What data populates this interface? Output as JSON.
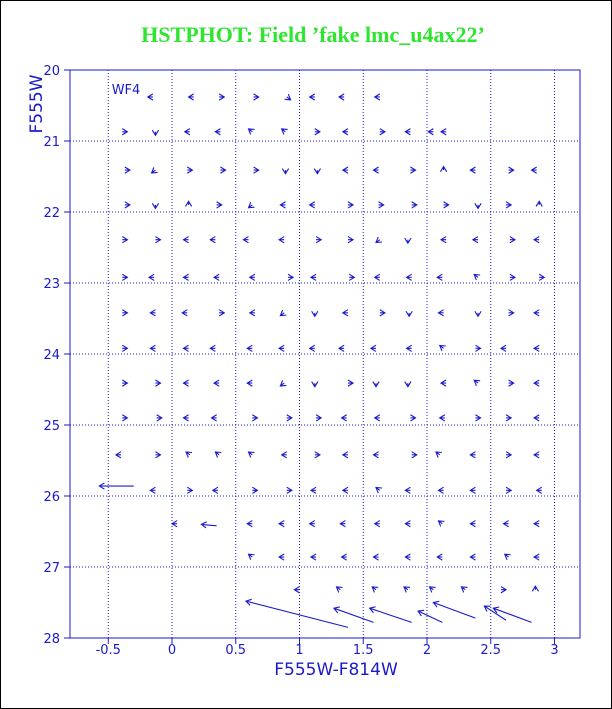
{
  "chart_data": {
    "type": "quiver",
    "title": "HSTPHOT: Field ’fake lmc_u4ax22’",
    "x_label": "F555W-F814W",
    "y_label": "F555W",
    "annotation": "WF4",
    "xlim": [
      -0.8,
      3.2
    ],
    "ylim": [
      28,
      20
    ],
    "xticks": [
      -0.5,
      0,
      0.5,
      1,
      1.5,
      2,
      2.5,
      3
    ],
    "yticks": [
      20,
      21,
      22,
      23,
      24,
      25,
      26,
      27,
      28
    ],
    "grid": true,
    "color": "#1a1acc",
    "arrows": [
      [
        -0.15,
        20.38,
        -0.04,
        0
      ],
      [
        0.17,
        20.38,
        -0.04,
        0
      ],
      [
        0.37,
        20.38,
        0.04,
        0
      ],
      [
        0.64,
        20.38,
        0.04,
        0
      ],
      [
        0.9,
        20.38,
        0.03,
        0.04
      ],
      [
        1.12,
        20.38,
        -0.04,
        0
      ],
      [
        1.35,
        20.38,
        -0.04,
        0
      ],
      [
        1.63,
        20.38,
        -0.04,
        0
      ],
      [
        -0.39,
        20.87,
        0.04,
        0
      ],
      [
        -0.13,
        20.87,
        0,
        0.05
      ],
      [
        0.14,
        20.87,
        -0.04,
        0
      ],
      [
        0.38,
        20.87,
        -0.04,
        0
      ],
      [
        0.63,
        20.87,
        -0.03,
        -0.04
      ],
      [
        0.89,
        20.87,
        -0.03,
        -0.04
      ],
      [
        1.12,
        20.87,
        0.04,
        0
      ],
      [
        1.38,
        20.87,
        -0.04,
        0
      ],
      [
        1.63,
        20.87,
        0.04,
        0
      ],
      [
        1.87,
        20.87,
        -0.04,
        0
      ],
      [
        2.05,
        20.87,
        -0.04,
        0
      ],
      [
        2.15,
        20.87,
        -0.04,
        0
      ],
      [
        -0.37,
        21.41,
        0.04,
        0
      ],
      [
        -0.13,
        21.41,
        -0.03,
        0.04
      ],
      [
        0.12,
        21.41,
        0.04,
        0
      ],
      [
        0.38,
        21.41,
        0.04,
        0
      ],
      [
        0.64,
        21.41,
        0.04,
        0
      ],
      [
        0.89,
        21.41,
        0,
        0.05
      ],
      [
        1.14,
        21.41,
        0,
        0.05
      ],
      [
        1.38,
        21.41,
        -0.04,
        0
      ],
      [
        1.62,
        21.41,
        -0.04,
        0
      ],
      [
        1.87,
        21.41,
        0.04,
        0
      ],
      [
        2.13,
        21.41,
        0,
        -0.05
      ],
      [
        2.38,
        21.41,
        -0.04,
        0
      ],
      [
        2.64,
        21.41,
        0.04,
        0
      ],
      [
        2.86,
        21.41,
        -0.04,
        0
      ],
      [
        -0.37,
        21.9,
        0.04,
        0
      ],
      [
        -0.13,
        21.9,
        0,
        0.05
      ],
      [
        0.13,
        21.9,
        0,
        -0.05
      ],
      [
        0.35,
        21.9,
        0.04,
        0
      ],
      [
        0.63,
        21.9,
        -0.03,
        0.04
      ],
      [
        0.89,
        21.9,
        -0.04,
        0
      ],
      [
        1.12,
        21.9,
        -0.04,
        0
      ],
      [
        1.38,
        21.9,
        0.04,
        0
      ],
      [
        1.62,
        21.9,
        0.04,
        0
      ],
      [
        1.88,
        21.9,
        0.04,
        0
      ],
      [
        2.13,
        21.9,
        0.04,
        0
      ],
      [
        2.4,
        21.9,
        0,
        0.05
      ],
      [
        2.62,
        21.9,
        0.04,
        0
      ],
      [
        2.88,
        21.9,
        0,
        -0.05
      ],
      [
        -0.39,
        22.39,
        0.04,
        0
      ],
      [
        -0.13,
        22.39,
        0.04,
        0
      ],
      [
        0.13,
        22.39,
        -0.04,
        0
      ],
      [
        0.34,
        22.39,
        -0.04,
        0
      ],
      [
        0.6,
        22.39,
        -0.04,
        0
      ],
      [
        0.88,
        22.39,
        -0.04,
        0
      ],
      [
        1.13,
        22.39,
        0.04,
        0
      ],
      [
        1.38,
        22.39,
        0.04,
        0
      ],
      [
        1.63,
        22.39,
        -0.03,
        0.04
      ],
      [
        1.85,
        22.39,
        0,
        0.05
      ],
      [
        2.15,
        22.39,
        -0.04,
        0
      ],
      [
        2.4,
        22.39,
        -0.04,
        0
      ],
      [
        2.65,
        22.39,
        0.04,
        0
      ],
      [
        2.88,
        22.39,
        -0.04,
        0
      ],
      [
        -0.39,
        22.92,
        0.04,
        0
      ],
      [
        -0.14,
        22.92,
        -0.04,
        0
      ],
      [
        0.13,
        22.92,
        -0.04,
        0
      ],
      [
        0.37,
        22.92,
        -0.04,
        0
      ],
      [
        0.65,
        22.92,
        -0.04,
        0
      ],
      [
        0.91,
        22.92,
        0.04,
        0
      ],
      [
        1.13,
        22.92,
        -0.04,
        0
      ],
      [
        1.39,
        22.92,
        0.04,
        0
      ],
      [
        1.63,
        22.92,
        -0.04,
        0
      ],
      [
        1.88,
        22.92,
        -0.04,
        0
      ],
      [
        2.12,
        22.92,
        -0.04,
        0
      ],
      [
        2.4,
        22.92,
        -0.03,
        -0.04
      ],
      [
        2.65,
        22.92,
        0.04,
        0
      ],
      [
        2.88,
        22.92,
        0.04,
        0
      ],
      [
        -0.39,
        23.42,
        0.04,
        0
      ],
      [
        -0.13,
        23.42,
        -0.04,
        0
      ],
      [
        0.12,
        23.42,
        -0.04,
        0
      ],
      [
        0.37,
        23.42,
        0.04,
        0
      ],
      [
        0.65,
        23.42,
        -0.04,
        0
      ],
      [
        0.88,
        23.42,
        -0.03,
        0.04
      ],
      [
        1.12,
        23.42,
        0,
        0.05
      ],
      [
        1.38,
        23.42,
        -0.04,
        0
      ],
      [
        1.63,
        23.42,
        0.04,
        0
      ],
      [
        1.86,
        23.42,
        0,
        0.05
      ],
      [
        2.13,
        23.42,
        -0.04,
        0
      ],
      [
        2.4,
        23.42,
        0,
        0.05
      ],
      [
        2.64,
        23.42,
        0.04,
        0
      ],
      [
        2.88,
        23.42,
        -0.04,
        0
      ],
      [
        -0.39,
        23.92,
        0.04,
        0
      ],
      [
        -0.13,
        23.92,
        -0.04,
        0
      ],
      [
        0.13,
        23.92,
        -0.04,
        0
      ],
      [
        0.34,
        23.92,
        -0.04,
        0
      ],
      [
        0.63,
        23.92,
        -0.04,
        0
      ],
      [
        0.88,
        23.92,
        -0.04,
        0
      ],
      [
        1.12,
        23.92,
        -0.04,
        0
      ],
      [
        1.35,
        23.92,
        -0.04,
        0
      ],
      [
        1.6,
        23.92,
        -0.04,
        0
      ],
      [
        1.88,
        23.92,
        -0.04,
        0
      ],
      [
        2.13,
        23.92,
        -0.03,
        -0.04
      ],
      [
        2.38,
        23.92,
        0.04,
        0
      ],
      [
        2.62,
        23.92,
        -0.04,
        0
      ],
      [
        2.88,
        23.92,
        -0.04,
        0
      ],
      [
        -0.39,
        24.41,
        0.04,
        0
      ],
      [
        -0.13,
        24.41,
        0.04,
        0
      ],
      [
        0.13,
        24.41,
        -0.04,
        0
      ],
      [
        0.37,
        24.41,
        -0.04,
        0
      ],
      [
        0.63,
        24.41,
        -0.04,
        0
      ],
      [
        0.88,
        24.41,
        -0.03,
        0.04
      ],
      [
        1.12,
        24.41,
        0,
        0.05
      ],
      [
        1.38,
        24.41,
        0.04,
        0
      ],
      [
        1.6,
        24.41,
        0,
        0.05
      ],
      [
        1.85,
        24.41,
        0,
        0.05
      ],
      [
        2.15,
        24.41,
        -0.04,
        0
      ],
      [
        2.4,
        24.41,
        -0.03,
        -0.04
      ],
      [
        2.64,
        24.41,
        0.04,
        0
      ],
      [
        2.88,
        24.41,
        -0.04,
        0
      ],
      [
        -0.39,
        24.9,
        0.04,
        0
      ],
      [
        -0.12,
        24.9,
        0.04,
        0
      ],
      [
        0.13,
        24.9,
        -0.04,
        0
      ],
      [
        0.35,
        24.9,
        -0.04,
        0
      ],
      [
        0.63,
        24.9,
        0.04,
        0
      ],
      [
        0.9,
        24.9,
        0.04,
        0
      ],
      [
        1.13,
        24.9,
        0.04,
        0
      ],
      [
        1.37,
        24.9,
        -0.04,
        0
      ],
      [
        1.63,
        24.9,
        -0.04,
        0
      ],
      [
        1.87,
        24.9,
        0.04,
        0
      ],
      [
        2.14,
        24.9,
        -0.04,
        0
      ],
      [
        2.38,
        24.9,
        0.04,
        0
      ],
      [
        2.62,
        24.9,
        0.04,
        0
      ],
      [
        2.88,
        24.9,
        -0.04,
        0
      ],
      [
        -0.4,
        25.42,
        -0.04,
        0
      ],
      [
        -0.13,
        25.42,
        0.04,
        0
      ],
      [
        0.14,
        25.42,
        -0.03,
        -0.04
      ],
      [
        0.37,
        25.42,
        -0.03,
        -0.04
      ],
      [
        0.63,
        25.42,
        -0.03,
        -0.04
      ],
      [
        0.9,
        25.42,
        -0.04,
        0
      ],
      [
        1.12,
        25.42,
        0.04,
        0
      ],
      [
        1.38,
        25.42,
        -0.04,
        0
      ],
      [
        1.62,
        25.42,
        -0.04,
        0
      ],
      [
        1.88,
        25.42,
        0.04,
        0
      ],
      [
        2.1,
        25.42,
        -0.03,
        -0.04
      ],
      [
        2.38,
        25.42,
        -0.04,
        0
      ],
      [
        2.62,
        25.42,
        0.04,
        0
      ],
      [
        2.88,
        25.42,
        -0.04,
        0
      ],
      [
        -0.13,
        25.92,
        -0.04,
        0
      ],
      [
        0.12,
        25.92,
        0.04,
        0
      ],
      [
        0.36,
        25.92,
        -0.04,
        0
      ],
      [
        0.63,
        25.92,
        0.04,
        0
      ],
      [
        0.9,
        25.92,
        0.04,
        0
      ],
      [
        1.13,
        25.92,
        -0.04,
        0
      ],
      [
        1.38,
        25.92,
        -0.04,
        0
      ],
      [
        1.63,
        25.92,
        -0.03,
        -0.04
      ],
      [
        1.87,
        25.92,
        -0.04,
        0
      ],
      [
        2.13,
        25.92,
        -0.04,
        0
      ],
      [
        2.38,
        25.92,
        -0.04,
        0
      ],
      [
        2.62,
        25.92,
        0.04,
        0
      ],
      [
        2.9,
        25.92,
        -0.04,
        0
      ],
      [
        0.04,
        26.39,
        -0.04,
        0
      ],
      [
        0.63,
        26.39,
        -0.04,
        0
      ],
      [
        0.88,
        26.39,
        -0.04,
        0
      ],
      [
        1.12,
        26.39,
        -0.04,
        0
      ],
      [
        1.36,
        26.39,
        -0.04,
        0
      ],
      [
        1.63,
        26.39,
        -0.04,
        0
      ],
      [
        1.87,
        26.39,
        -0.04,
        0
      ],
      [
        2.12,
        26.39,
        -0.03,
        -0.04
      ],
      [
        2.38,
        26.39,
        -0.04,
        0
      ],
      [
        2.64,
        26.39,
        -0.04,
        0
      ],
      [
        2.88,
        26.39,
        -0.04,
        0
      ],
      [
        0.63,
        26.86,
        -0.03,
        -0.04
      ],
      [
        0.88,
        26.86,
        -0.04,
        0
      ],
      [
        1.13,
        26.86,
        -0.04,
        0
      ],
      [
        1.37,
        26.86,
        -0.04,
        0
      ],
      [
        1.62,
        26.86,
        -0.04,
        0
      ],
      [
        1.87,
        26.86,
        -0.04,
        0
      ],
      [
        2.12,
        26.86,
        -0.04,
        0
      ],
      [
        2.38,
        26.86,
        -0.04,
        0
      ],
      [
        2.64,
        26.86,
        -0.03,
        -0.04
      ],
      [
        2.88,
        26.86,
        -0.04,
        0
      ],
      [
        1.0,
        27.32,
        -0.04,
        0
      ],
      [
        1.32,
        27.32,
        -0.03,
        -0.04
      ],
      [
        1.6,
        27.32,
        -0.03,
        -0.04
      ],
      [
        1.85,
        27.32,
        -0.03,
        -0.04
      ],
      [
        2.05,
        27.32,
        -0.03,
        -0.04
      ],
      [
        2.3,
        27.32,
        -0.03,
        -0.04
      ],
      [
        2.58,
        27.32,
        0.04,
        0
      ],
      [
        2.85,
        27.32,
        0,
        -0.05
      ],
      [
        1.38,
        27.85,
        -0.8,
        -0.37
      ],
      [
        1.58,
        27.78,
        -0.31,
        -0.2
      ],
      [
        1.88,
        27.78,
        -0.33,
        -0.2
      ],
      [
        2.12,
        27.78,
        -0.19,
        -0.16
      ],
      [
        2.38,
        27.72,
        -0.33,
        -0.22
      ],
      [
        2.62,
        27.75,
        -0.17,
        -0.2
      ],
      [
        2.82,
        27.78,
        -0.3,
        -0.2
      ],
      [
        -0.3,
        25.86,
        -0.27,
        0
      ],
      [
        0.35,
        26.42,
        -0.12,
        -0.02
      ]
    ]
  }
}
